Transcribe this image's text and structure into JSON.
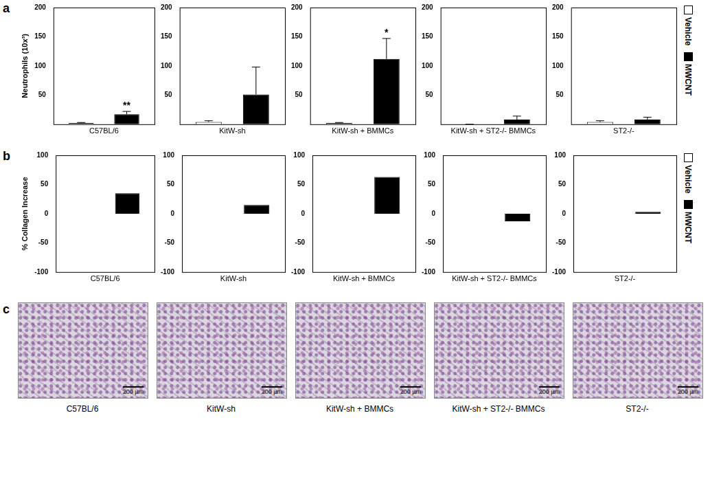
{
  "chart_data": [
    {
      "type": "bar",
      "panel": "a",
      "title": "C57BL/6",
      "ylabel": "Neutrophils (10x³)",
      "categories": [
        null
      ],
      "ylim": [
        0,
        200
      ],
      "yticks": [
        50,
        100,
        150,
        200
      ],
      "grid": false,
      "legend": "right",
      "series": [
        {
          "name": "Vehicle",
          "color": "#ffffff",
          "values": [
            2
          ],
          "errors": [
            1
          ]
        },
        {
          "name": "MWCNT",
          "color": "#000000",
          "values": [
            17
          ],
          "errors": [
            5
          ]
        }
      ],
      "annotations": [
        {
          "series": "MWCNT",
          "text": "**"
        }
      ]
    },
    {
      "type": "bar",
      "panel": "a",
      "title": "KitW-sh",
      "categories": [
        null
      ],
      "ylim": [
        0,
        200
      ],
      "yticks": [
        50,
        100,
        150,
        200
      ],
      "grid": false,
      "series": [
        {
          "name": "Vehicle",
          "color": "#ffffff",
          "values": [
            4
          ],
          "errors": [
            2
          ]
        },
        {
          "name": "MWCNT",
          "color": "#000000",
          "values": [
            51
          ],
          "errors": [
            47
          ]
        }
      ]
    },
    {
      "type": "bar",
      "panel": "a",
      "title": "KitW-sh + BMMCs",
      "categories": [
        null
      ],
      "ylim": [
        0,
        200
      ],
      "yticks": [
        50,
        100,
        150,
        200
      ],
      "grid": false,
      "series": [
        {
          "name": "Vehicle",
          "color": "#ffffff",
          "values": [
            2
          ],
          "errors": [
            1
          ]
        },
        {
          "name": "MWCNT",
          "color": "#000000",
          "values": [
            112
          ],
          "errors": [
            35
          ]
        }
      ],
      "annotations": [
        {
          "series": "MWCNT",
          "text": "*"
        }
      ]
    },
    {
      "type": "bar",
      "panel": "a",
      "title": "KitW-sh + ST2-/- BMMCs",
      "categories": [
        null
      ],
      "ylim": [
        0,
        200
      ],
      "yticks": [
        50,
        100,
        150,
        200
      ],
      "grid": false,
      "series": [
        {
          "name": "Vehicle",
          "color": "#ffffff",
          "values": [
            0
          ],
          "errors": [
            0
          ]
        },
        {
          "name": "MWCNT",
          "color": "#000000",
          "values": [
            8
          ],
          "errors": [
            6
          ]
        }
      ]
    },
    {
      "type": "bar",
      "panel": "a",
      "title": "ST2-/-",
      "categories": [
        null
      ],
      "ylim": [
        0,
        200
      ],
      "yticks": [
        50,
        100,
        150,
        200
      ],
      "grid": false,
      "series": [
        {
          "name": "Vehicle",
          "color": "#ffffff",
          "values": [
            4
          ],
          "errors": [
            2
          ]
        },
        {
          "name": "MWCNT",
          "color": "#000000",
          "values": [
            8
          ],
          "errors": [
            4
          ]
        }
      ]
    },
    {
      "type": "bar",
      "panel": "b",
      "title": "C57BL/6",
      "ylabel": "% Collagen Increase",
      "categories": [
        null
      ],
      "ylim": [
        -100,
        100
      ],
      "yticks": [
        -100,
        -50,
        0,
        50,
        100
      ],
      "grid": false,
      "legend": "right",
      "series": [
        {
          "name": "Vehicle",
          "color": "#ffffff",
          "values": [
            0
          ]
        },
        {
          "name": "MWCNT",
          "color": "#000000",
          "values": [
            35
          ]
        }
      ]
    },
    {
      "type": "bar",
      "panel": "b",
      "title": "KitW-sh",
      "categories": [
        null
      ],
      "ylim": [
        -100,
        100
      ],
      "yticks": [
        -100,
        -50,
        0,
        50,
        100
      ],
      "grid": false,
      "series": [
        {
          "name": "Vehicle",
          "color": "#ffffff",
          "values": [
            0
          ]
        },
        {
          "name": "MWCNT",
          "color": "#000000",
          "values": [
            15
          ]
        }
      ]
    },
    {
      "type": "bar",
      "panel": "b",
      "title": "KitW-sh + BMMCs",
      "categories": [
        null
      ],
      "ylim": [
        -100,
        100
      ],
      "yticks": [
        -100,
        -50,
        0,
        50,
        100
      ],
      "grid": false,
      "series": [
        {
          "name": "Vehicle",
          "color": "#ffffff",
          "values": [
            0
          ]
        },
        {
          "name": "MWCNT",
          "color": "#000000",
          "values": [
            63
          ]
        }
      ]
    },
    {
      "type": "bar",
      "panel": "b",
      "title": "KitW-sh + ST2-/- BMMCs",
      "categories": [
        null
      ],
      "ylim": [
        -100,
        100
      ],
      "yticks": [
        -100,
        -50,
        0,
        50,
        100
      ],
      "grid": false,
      "series": [
        {
          "name": "Vehicle",
          "color": "#ffffff",
          "values": [
            0
          ]
        },
        {
          "name": "MWCNT",
          "color": "#000000",
          "values": [
            -13
          ]
        }
      ]
    },
    {
      "type": "bar",
      "panel": "b",
      "title": "ST2-/-",
      "categories": [
        null
      ],
      "ylim": [
        -100,
        100
      ],
      "yticks": [
        -100,
        -50,
        0,
        50,
        100
      ],
      "grid": false,
      "series": [
        {
          "name": "Vehicle",
          "color": "#ffffff",
          "values": [
            0
          ]
        },
        {
          "name": "MWCNT",
          "color": "#000000",
          "values": [
            3
          ]
        }
      ]
    }
  ],
  "images": {
    "panel": "c",
    "items": [
      {
        "caption": "C57BL/6",
        "scale_bar": "200 µm"
      },
      {
        "caption": "KitW-sh",
        "scale_bar": "200 µm"
      },
      {
        "caption": "KitW-sh + BMMCs",
        "scale_bar": "200 µm"
      },
      {
        "caption": "KitW-sh + ST2-/- BMMCs",
        "scale_bar": "200 µm"
      },
      {
        "caption": "ST2-/-",
        "scale_bar": "200 µm"
      }
    ]
  }
}
